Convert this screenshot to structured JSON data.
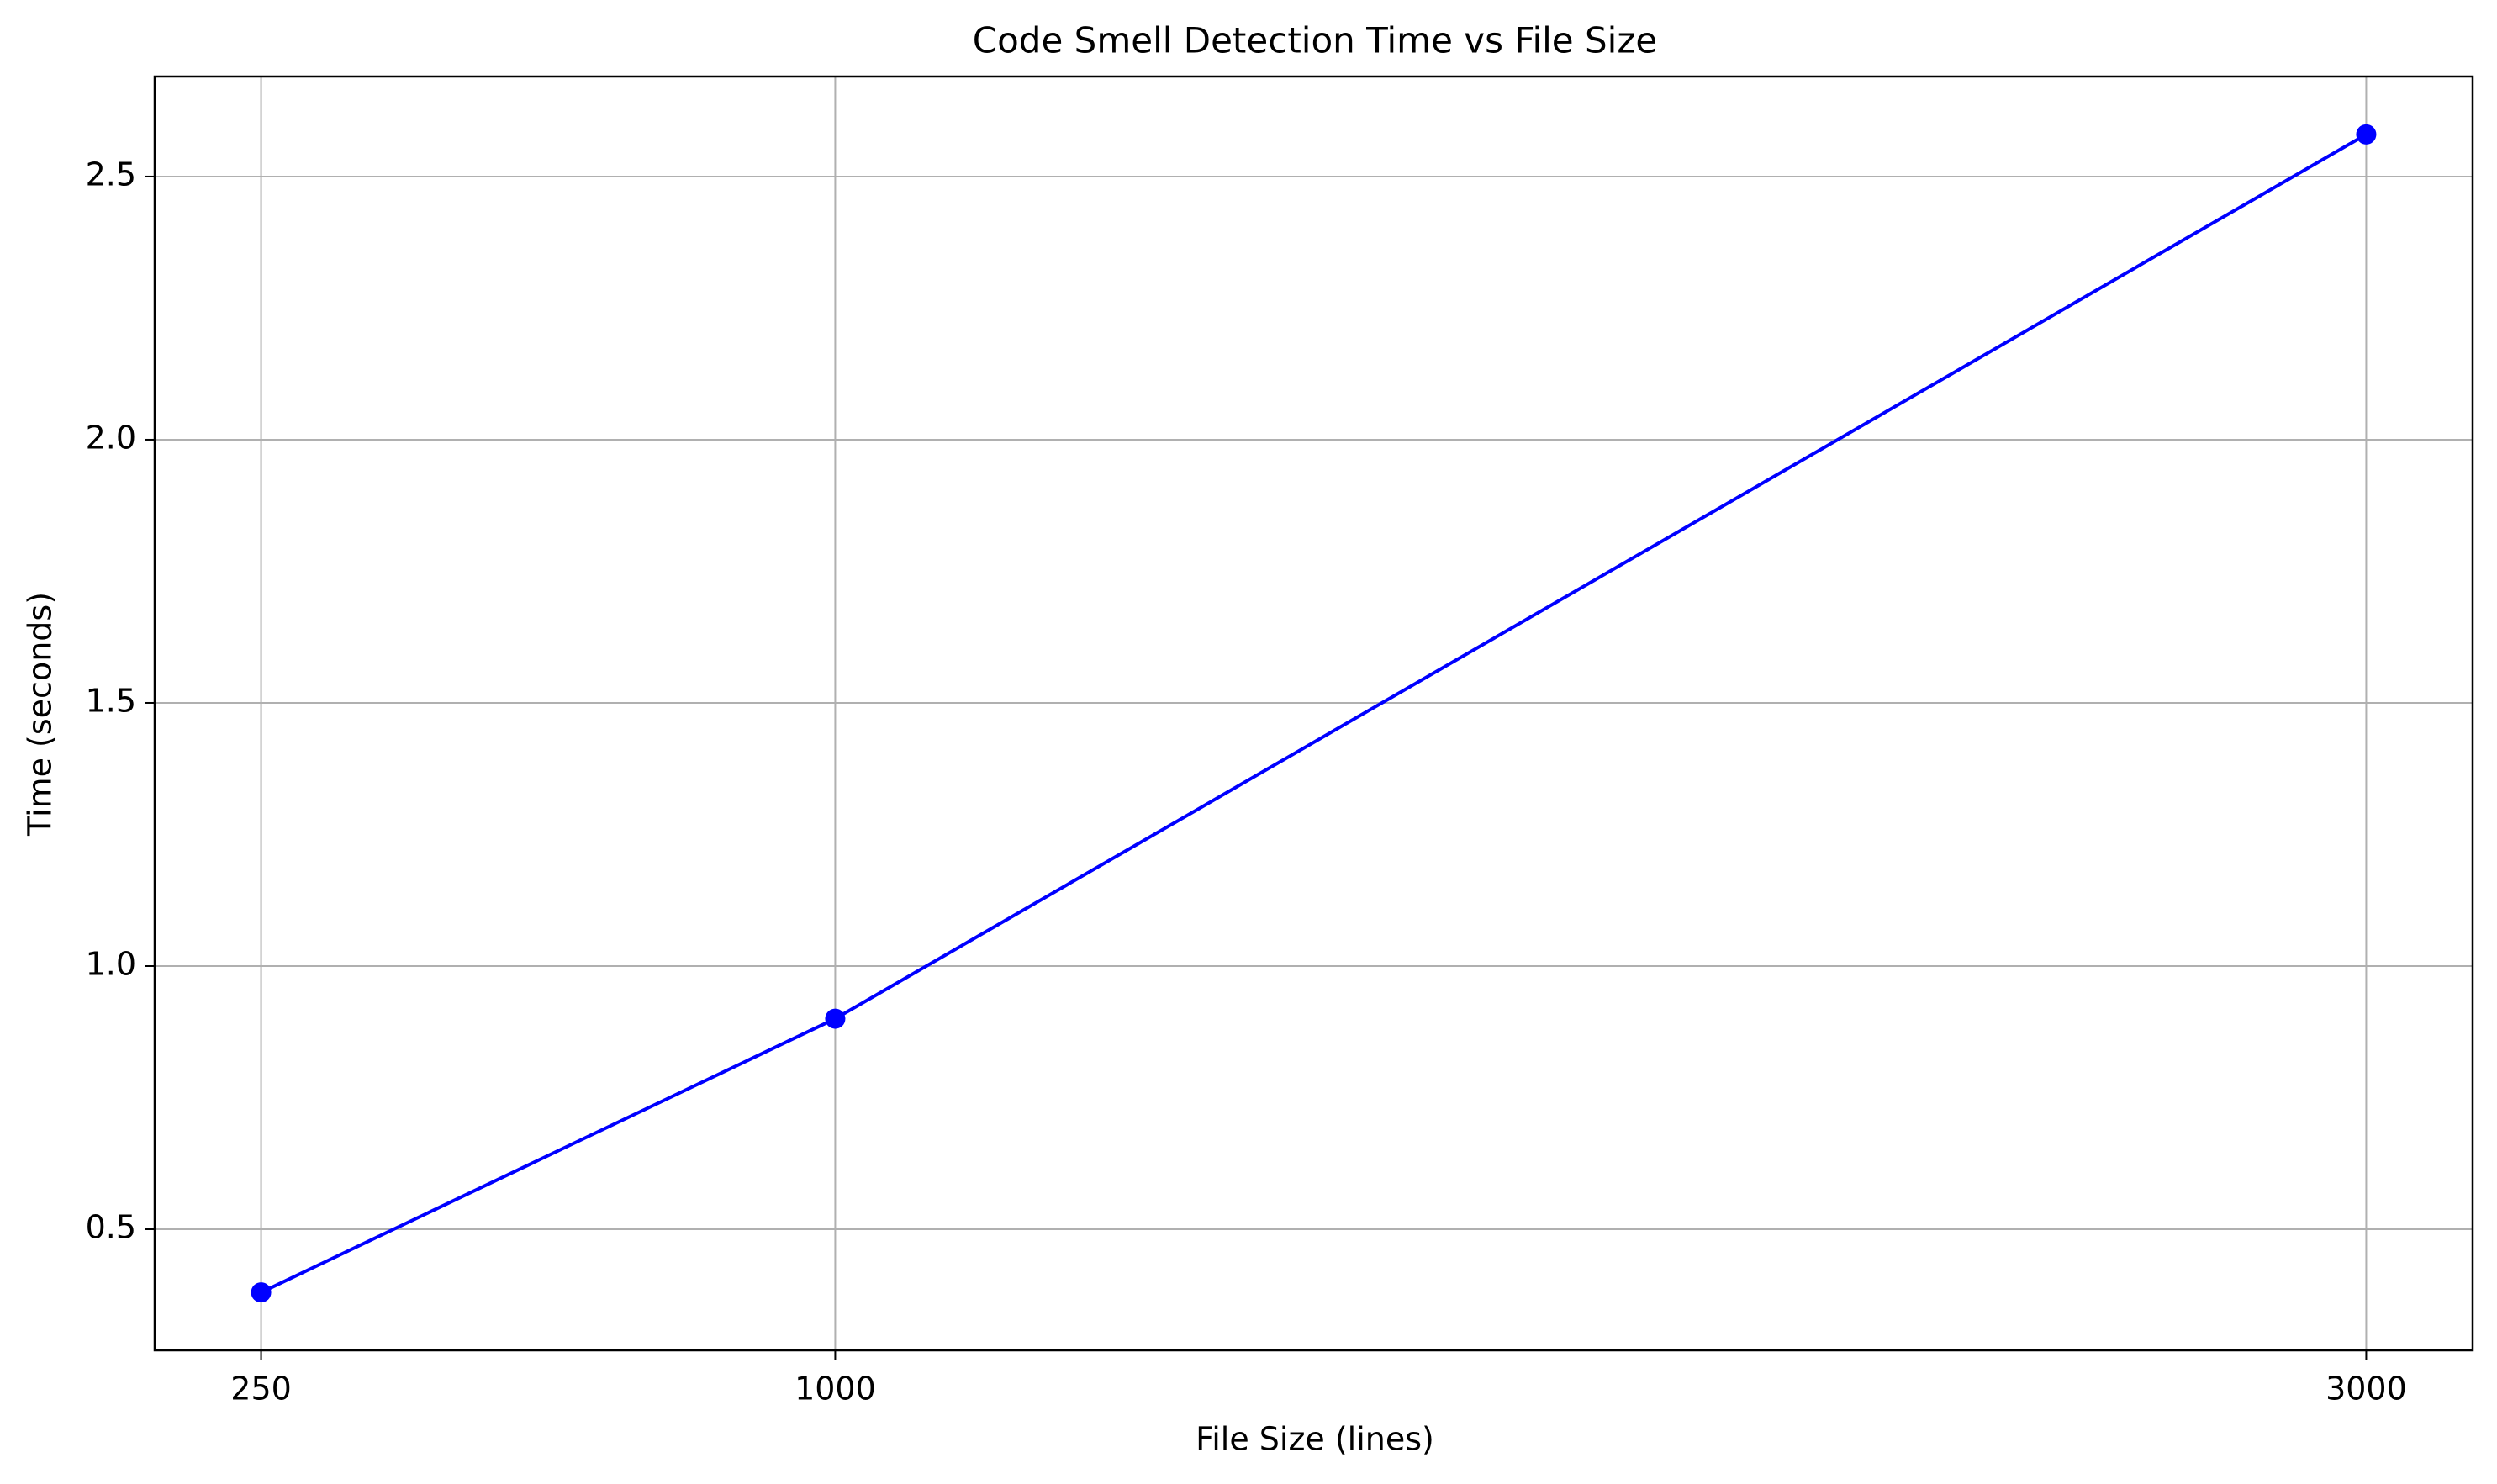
{
  "chart_data": {
    "type": "line",
    "title": "Code Smell Detection Time vs File Size",
    "xlabel": "File Size (lines)",
    "ylabel": "Time (seconds)",
    "x": [
      250,
      1000,
      3000
    ],
    "xticks": [
      "250",
      "1000",
      "3000"
    ],
    "xlim": [
      111,
      3139
    ],
    "ylim": [
      0.27,
      2.69
    ],
    "yticks": [
      0.5,
      1.0,
      1.5,
      2.0,
      2.5
    ],
    "ytick_labels": [
      "0.5",
      "1.0",
      "1.5",
      "2.0",
      "2.5"
    ],
    "grid": true,
    "series": [
      {
        "values": [
          0.38,
          0.9,
          2.58
        ],
        "color": "#0000ff",
        "marker": "circle"
      }
    ]
  }
}
